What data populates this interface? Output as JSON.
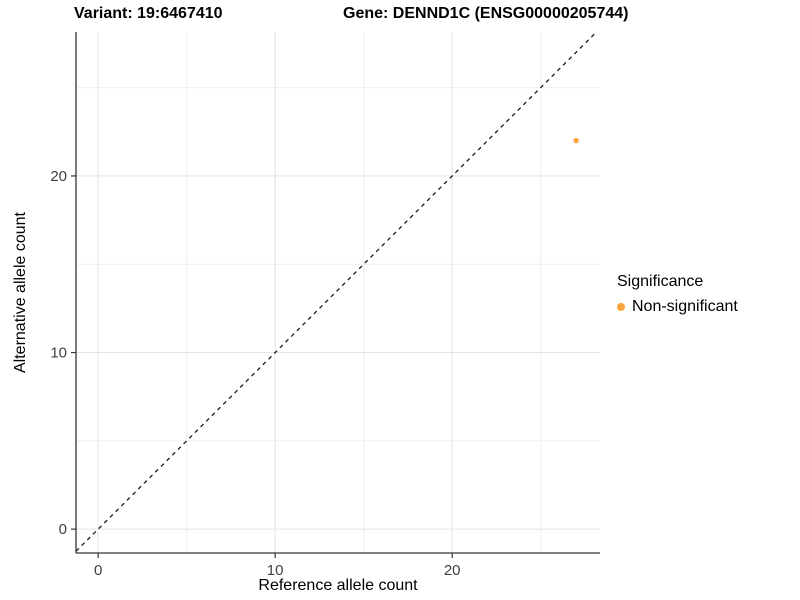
{
  "chart_data": {
    "type": "scatter",
    "title_left": "Variant: 19:6467410",
    "title_right": "Gene: DENND1C (ENSG00000205744)",
    "xlabel": "Reference allele count",
    "ylabel": "Alternative allele count",
    "xlim": [
      -1.25,
      28.35
    ],
    "ylim": [
      -1.35,
      28.15
    ],
    "x_ticks": [
      0,
      10,
      20
    ],
    "y_ticks": [
      0,
      10,
      20
    ],
    "x_minor_ticks": [
      5,
      15,
      25
    ],
    "y_minor_ticks": [
      5,
      15,
      25
    ],
    "grid": true,
    "legend_position": "right",
    "series": [
      {
        "name": "Non-significant",
        "color": "#FAA43C",
        "points": [
          {
            "x": 27,
            "y": 22
          }
        ]
      }
    ],
    "reference_line": {
      "slope": 1,
      "intercept": 0,
      "style": "dashed",
      "color": "#1A1A1A"
    }
  },
  "legend": {
    "title": "Significance",
    "items": [
      {
        "label": "Non-significant",
        "color": "#FAA43C"
      }
    ]
  },
  "colors": {
    "background": "#FFFFFF",
    "grid_major": "#E3E3E3",
    "grid_minor": "#EFEFEF",
    "axis_line": "#343434",
    "tick_label": "#404040",
    "axis_title": "#000000"
  }
}
